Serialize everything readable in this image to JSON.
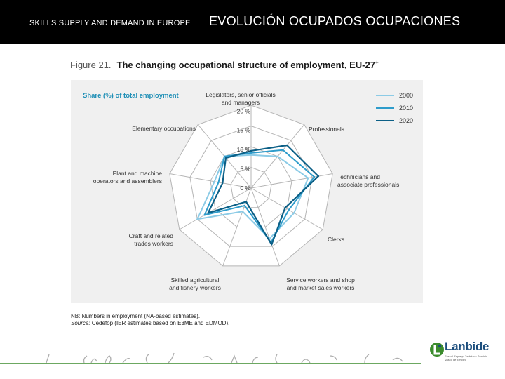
{
  "header": {
    "left_text": "SKILLS SUPPLY AND DEMAND IN EUROPE",
    "right_text": "EVOLUCIÓN OCUPADOS OCUPACIONES"
  },
  "figure": {
    "number": "Figure 21.",
    "title": "The changing occupational structure of employment, EU-27",
    "title_sup": "+",
    "note_line1": "NB: Numbers in employment (NA-based estimates).",
    "note_source_label": "Source:",
    "note_source_text": "Cedefop (IER estimates based on E3ME and EDMOD)."
  },
  "logo": {
    "name": "Lanbide",
    "subtitle": "Euskal Enplegu Zerbitzua Servicio Vasco de Empleo"
  },
  "colors": {
    "header_bg": "#000000",
    "series_2000": "#8ccbe6",
    "series_2010": "#2e9ccb",
    "series_2020": "#0b5f86",
    "grid": "#b5b5b5",
    "label_teal": "#1f8fb6",
    "footer_green": "#3c8c2d"
  },
  "chart_data": {
    "type": "radar",
    "title": "Share (%) of total employment",
    "categories": [
      "Legislators, senior officials and managers",
      "Professionals",
      "Technicians and associate professionals",
      "Clerks",
      "Service workers and shop and market sales workers",
      "Skilled agricultural and fishery workers",
      "Craft and related trades workers",
      "Plant and machine operators and assemblers",
      "Elementary occupations"
    ],
    "label_lines": [
      [
        "Legislators, senior officials",
        "and managers"
      ],
      [
        "Professionals"
      ],
      [
        "Technicians and",
        "associate professionals"
      ],
      [
        "Clerks"
      ],
      [
        "Service workers and shop",
        "and market sales workers"
      ],
      [
        "Skilled agricultural",
        "and fishery workers"
      ],
      [
        "Craft and related",
        "trades workers"
      ],
      [
        "Plant and machine",
        "operators and assemblers"
      ],
      [
        "Elementary occupations"
      ]
    ],
    "radial_ticks": [
      "0 %",
      "5 %",
      "10 %",
      "15 %",
      "20 %"
    ],
    "rlim": [
      0,
      20
    ],
    "legend_position": "top-right",
    "series": [
      {
        "name": "2000",
        "values": [
          8,
          10,
          14,
          12,
          13,
          6,
          15,
          9,
          10
        ]
      },
      {
        "name": "2010",
        "values": [
          8.5,
          12,
          15.5,
          10.5,
          14,
          4.5,
          13,
          8,
          10
        ]
      },
      {
        "name": "2020",
        "values": [
          9,
          13.5,
          16.5,
          9.5,
          14.5,
          3.5,
          12,
          7,
          9.5
        ]
      }
    ]
  }
}
